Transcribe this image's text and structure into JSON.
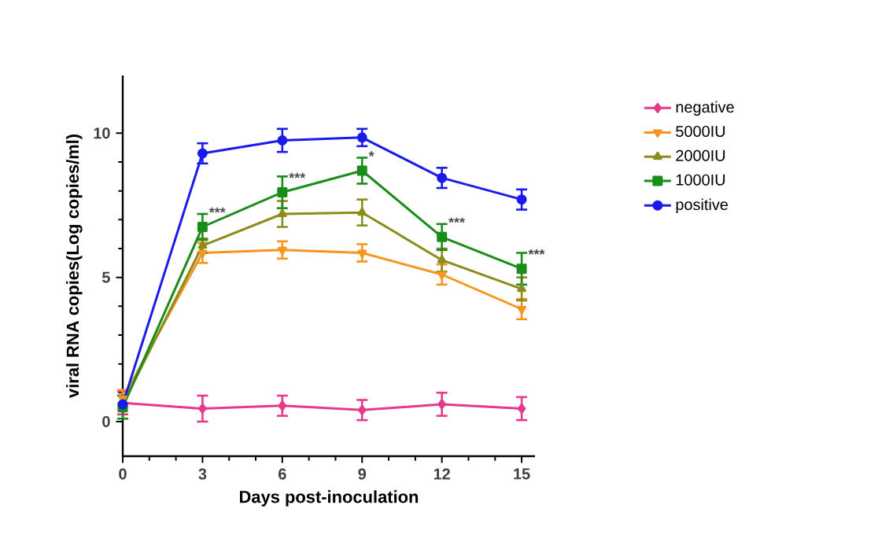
{
  "chart_data": {
    "type": "line",
    "xlabel": "Days post-inoculation",
    "ylabel": "viral RNA copies(Log copies/ml)",
    "x": [
      0,
      3,
      6,
      9,
      12,
      15
    ],
    "xlim": [
      0,
      15.5
    ],
    "xticks": [
      0,
      3,
      6,
      9,
      12,
      15
    ],
    "ylim": [
      -1.2,
      12
    ],
    "yticks": [
      0,
      5,
      10
    ],
    "legend": "right",
    "series": [
      {
        "name": "negative",
        "color": "#e8388a",
        "marker": "diamond",
        "values": [
          0.65,
          0.45,
          0.55,
          0.4,
          0.6,
          0.45
        ],
        "errors": [
          0.4,
          0.45,
          0.35,
          0.35,
          0.4,
          0.4
        ]
      },
      {
        "name": "5000IU",
        "color": "#f7941d",
        "marker": "triangle down",
        "values": [
          0.8,
          5.85,
          5.95,
          5.85,
          5.1,
          3.9
        ],
        "errors": [
          0.3,
          0.35,
          0.3,
          0.3,
          0.35,
          0.35
        ]
      },
      {
        "name": "2000IU",
        "color": "#8c8c1a",
        "marker": "triangle",
        "values": [
          0.6,
          6.1,
          7.2,
          7.25,
          5.6,
          4.6
        ],
        "errors": [
          null,
          0.25,
          0.45,
          0.45,
          0.4,
          0.4
        ]
      },
      {
        "name": "1000IU",
        "color": "#1a8c1a",
        "marker": "square",
        "values": [
          0.5,
          6.75,
          7.95,
          8.7,
          6.4,
          5.3
        ],
        "errors": [
          0.4,
          0.45,
          0.55,
          0.45,
          0.45,
          0.55
        ]
      },
      {
        "name": "positive",
        "color": "#1a1aee",
        "marker": "circle",
        "values": [
          0.6,
          9.3,
          9.75,
          9.85,
          8.45,
          7.7
        ],
        "errors": [
          null,
          0.35,
          0.4,
          0.3,
          0.35,
          0.35
        ]
      }
    ],
    "annotations": [
      {
        "text": "***",
        "x": 3,
        "y": 6.75
      },
      {
        "text": "***",
        "x": 6,
        "y": 7.95
      },
      {
        "text": "*",
        "x": 9,
        "y": 8.7
      },
      {
        "text": "***",
        "x": 12,
        "y": 6.4
      },
      {
        "text": "***",
        "x": 15,
        "y": 5.3
      }
    ]
  }
}
